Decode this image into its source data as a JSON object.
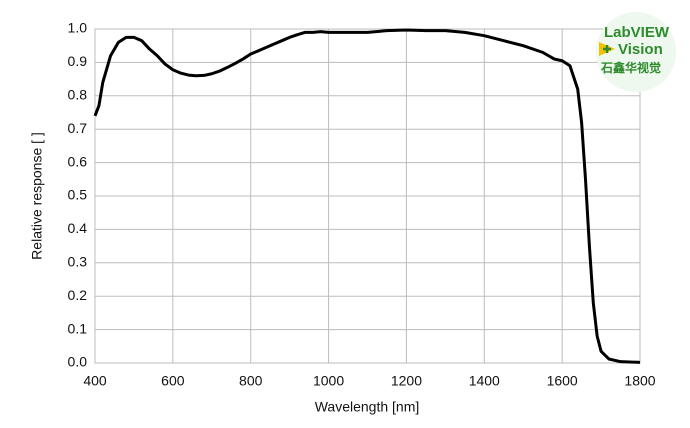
{
  "chart_data": {
    "type": "line",
    "x_label": "Wavelength [nm]",
    "y_label": "Relative response [ ]",
    "x": [
      400,
      410,
      420,
      440,
      460,
      480,
      500,
      520,
      540,
      560,
      580,
      600,
      620,
      640,
      660,
      680,
      700,
      720,
      740,
      760,
      780,
      800,
      820,
      840,
      860,
      880,
      900,
      920,
      940,
      960,
      980,
      1000,
      1050,
      1100,
      1150,
      1200,
      1250,
      1300,
      1350,
      1400,
      1450,
      1500,
      1550,
      1580,
      1600,
      1620,
      1640,
      1650,
      1660,
      1670,
      1680,
      1690,
      1700,
      1720,
      1750,
      1800
    ],
    "series": [
      {
        "color": "#000000",
        "values": [
          0.74,
          0.77,
          0.84,
          0.92,
          0.96,
          0.975,
          0.975,
          0.965,
          0.94,
          0.92,
          0.895,
          0.878,
          0.868,
          0.862,
          0.86,
          0.861,
          0.866,
          0.874,
          0.885,
          0.897,
          0.91,
          0.925,
          0.935,
          0.945,
          0.955,
          0.965,
          0.975,
          0.983,
          0.99,
          0.99,
          0.992,
          0.99,
          0.99,
          0.99,
          0.995,
          0.997,
          0.995,
          0.995,
          0.99,
          0.98,
          0.965,
          0.95,
          0.93,
          0.91,
          0.905,
          0.89,
          0.82,
          0.72,
          0.55,
          0.35,
          0.18,
          0.08,
          0.035,
          0.012,
          0.004,
          0.002
        ]
      }
    ],
    "xlim": [
      400,
      1800
    ],
    "xticks": [
      400,
      600,
      800,
      1000,
      1200,
      1400,
      1600,
      1800
    ],
    "ylim": [
      0,
      1
    ],
    "yticks": [
      {
        "value": 0,
        "label": "0.0"
      },
      0.1,
      0.2,
      0.3,
      0.4,
      0.5,
      0.6,
      0.7,
      0.8,
      0.9,
      {
        "value": 1,
        "label": "1.0"
      }
    ],
    "grid": true
  },
  "watermark": {
    "line1": "LabVIEW",
    "line2": "Vision",
    "line3": "石鑫华视觉"
  }
}
